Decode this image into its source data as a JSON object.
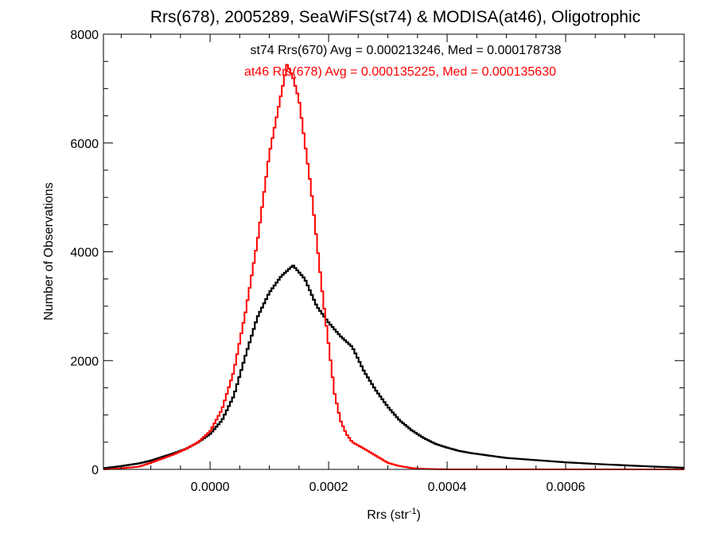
{
  "chart_data": {
    "type": "line",
    "title": "Rrs(678), 2005289, SeaWiFS(st74) & MODISA(at46), Oligotrophic",
    "xlabel": "Rrs (str",
    "xlabel_sup": "-1",
    "xlabel_close": ")",
    "ylabel": "Number of Observations",
    "xlim": [
      -0.00018,
      0.0008
    ],
    "ylim": [
      0,
      8000
    ],
    "xticks": [
      0.0,
      0.0002,
      0.0004,
      0.0006
    ],
    "xtick_labels": [
      "0.0000",
      "0.0002",
      "0.0004",
      "0.0006"
    ],
    "yticks": [
      0,
      2000,
      4000,
      6000,
      8000
    ],
    "ytick_labels": [
      "0",
      "2000",
      "4000",
      "6000",
      "8000"
    ],
    "grid": false,
    "annotations": [
      {
        "text": "st74 Rrs(670) Avg = 0.000213246, Med = 0.000178738",
        "color": "#000000"
      },
      {
        "text": "at46 Rrs(678) Avg = 0.000135225, Med = 0.000135630",
        "color": "#ff0000"
      }
    ],
    "series": [
      {
        "color": "#000000",
        "style": "histogram-step",
        "points": [
          [
            -0.00018,
            20
          ],
          [
            -0.00015,
            60
          ],
          [
            -0.00012,
            110
          ],
          [
            -0.0001,
            160
          ],
          [
            -8e-05,
            230
          ],
          [
            -6e-05,
            300
          ],
          [
            -4e-05,
            380
          ],
          [
            -2e-05,
            500
          ],
          [
            0.0,
            650
          ],
          [
            2e-05,
            900
          ],
          [
            4e-05,
            1350
          ],
          [
            6e-05,
            2100
          ],
          [
            8e-05,
            2800
          ],
          [
            0.0001,
            3250
          ],
          [
            0.00012,
            3550
          ],
          [
            0.00014,
            3750
          ],
          [
            0.00016,
            3500
          ],
          [
            0.00018,
            3000
          ],
          [
            0.0002,
            2700
          ],
          [
            0.00022,
            2450
          ],
          [
            0.00024,
            2250
          ],
          [
            0.00026,
            1800
          ],
          [
            0.00028,
            1450
          ],
          [
            0.0003,
            1150
          ],
          [
            0.00032,
            900
          ],
          [
            0.00034,
            720
          ],
          [
            0.00036,
            580
          ],
          [
            0.00038,
            470
          ],
          [
            0.0004,
            400
          ],
          [
            0.00042,
            340
          ],
          [
            0.00044,
            300
          ],
          [
            0.00046,
            270
          ],
          [
            0.00048,
            240
          ],
          [
            0.0005,
            210
          ],
          [
            0.00055,
            170
          ],
          [
            0.0006,
            130
          ],
          [
            0.00065,
            100
          ],
          [
            0.0007,
            75
          ],
          [
            0.00075,
            50
          ],
          [
            0.0008,
            30
          ]
        ]
      },
      {
        "color": "#ff0000",
        "style": "histogram-step",
        "points": [
          [
            -0.00018,
            0
          ],
          [
            -0.00015,
            20
          ],
          [
            -0.00012,
            50
          ],
          [
            -0.0001,
            120
          ],
          [
            -8e-05,
            200
          ],
          [
            -6e-05,
            280
          ],
          [
            -4e-05,
            380
          ],
          [
            -2e-05,
            500
          ],
          [
            0.0,
            700
          ],
          [
            2e-05,
            1100
          ],
          [
            4e-05,
            1800
          ],
          [
            6e-05,
            2900
          ],
          [
            8e-05,
            4200
          ],
          [
            0.0001,
            5800
          ],
          [
            0.00012,
            6900
          ],
          [
            0.00013,
            7450
          ],
          [
            0.00014,
            7200
          ],
          [
            0.00015,
            6800
          ],
          [
            0.00016,
            6000
          ],
          [
            0.00017,
            5200
          ],
          [
            0.00018,
            4200
          ],
          [
            0.00019,
            3200
          ],
          [
            0.0002,
            2300
          ],
          [
            0.00021,
            1400
          ],
          [
            0.00022,
            900
          ],
          [
            0.00023,
            650
          ],
          [
            0.00024,
            500
          ],
          [
            0.00026,
            380
          ],
          [
            0.00028,
            250
          ],
          [
            0.0003,
            120
          ],
          [
            0.00032,
            60
          ],
          [
            0.00034,
            25
          ],
          [
            0.00036,
            10
          ],
          [
            0.0004,
            0
          ],
          [
            0.0008,
            0
          ]
        ]
      }
    ]
  }
}
